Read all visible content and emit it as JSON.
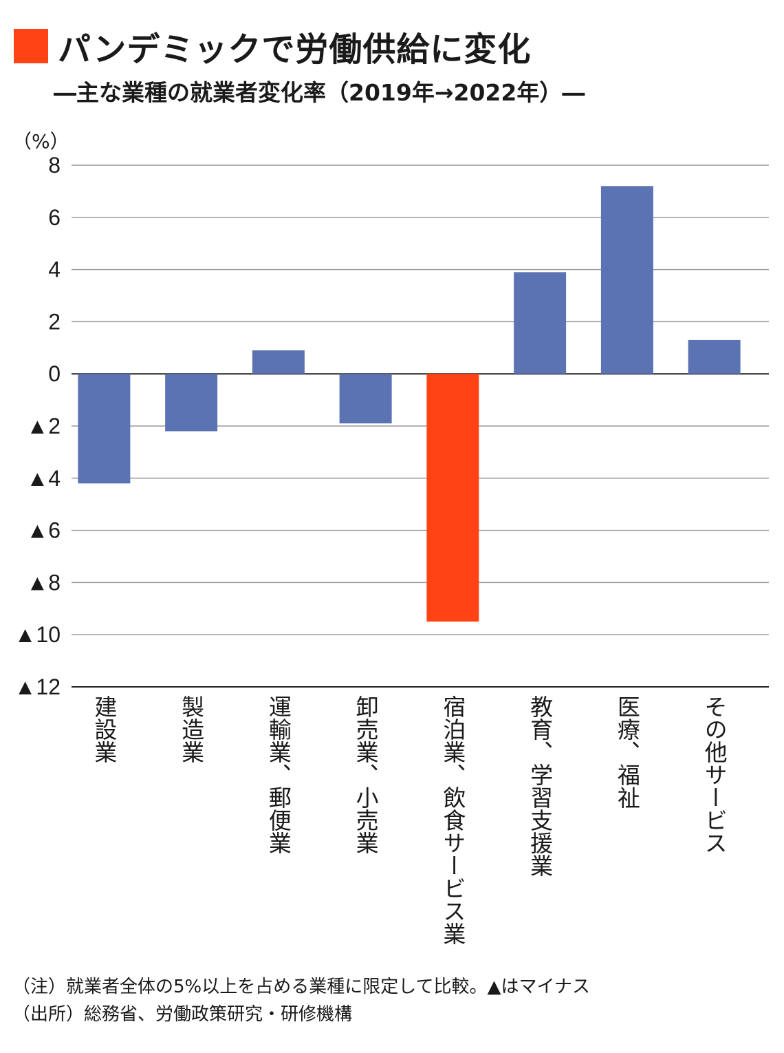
{
  "header": {
    "title": "パンデミックで労働供給に変化",
    "subtitle": "―主な業種の就業者変化率（2019年→2022年）―",
    "accent_color": "#ff4314"
  },
  "footer": {
    "note": "（注）就業者全体の5%以上を占める業種に限定して比較。▲はマイナス",
    "source": "（出所）総務省、労働政策研究・研修機構"
  },
  "chart_data": {
    "type": "bar",
    "ylabel": "（%）",
    "ylim": [
      -12,
      8
    ],
    "yticks": [
      8,
      6,
      4,
      2,
      0,
      -2,
      -4,
      -6,
      -8,
      -10,
      -12
    ],
    "ytick_labels": [
      "8",
      "6",
      "4",
      "2",
      "0",
      "▲2",
      "▲4",
      "▲6",
      "▲8",
      "▲10",
      "▲12"
    ],
    "grid": true,
    "categories": [
      "建設業",
      "製造業",
      "運輸業、郵便業",
      "卸売業、小売業",
      "宿泊業、飲食サービス業",
      "教育、学習支援業",
      "医療、福祉",
      "その他サービス"
    ],
    "values": [
      -4.2,
      -2.2,
      0.9,
      -1.9,
      -9.5,
      3.9,
      7.2,
      1.3
    ],
    "bar_color": "#5b73b3",
    "highlight_color": "#ff4314",
    "highlight_category": "宿泊業、飲食サービス業"
  }
}
